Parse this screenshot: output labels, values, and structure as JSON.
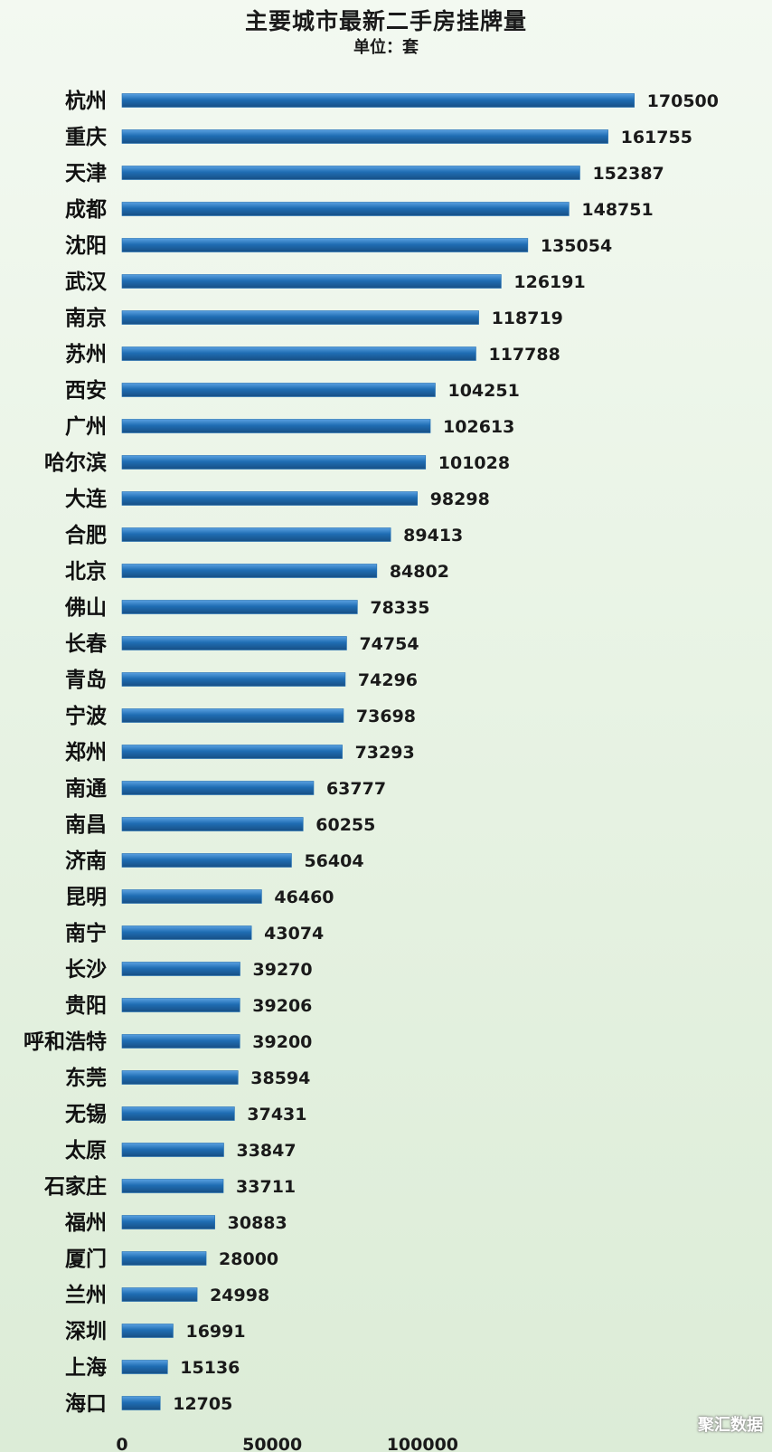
{
  "chart_data": {
    "type": "bar",
    "orientation": "horizontal",
    "title": "主要城市最新二手房挂牌量",
    "subtitle": "单位：套",
    "categories": [
      "杭州",
      "重庆",
      "天津",
      "成都",
      "沈阳",
      "武汉",
      "南京",
      "苏州",
      "西安",
      "广州",
      "哈尔滨",
      "大连",
      "合肥",
      "北京",
      "佛山",
      "长春",
      "青岛",
      "宁波",
      "郑州",
      "南通",
      "南昌",
      "济南",
      "昆明",
      "南宁",
      "长沙",
      "贵阳",
      "呼和浩特",
      "东莞",
      "无锡",
      "太原",
      "石家庄",
      "福州",
      "厦门",
      "兰州",
      "深圳",
      "上海",
      "海口"
    ],
    "values": [
      170500,
      161755,
      152387,
      148751,
      135054,
      126191,
      118719,
      117788,
      104251,
      102613,
      101028,
      98298,
      89413,
      84802,
      78335,
      74754,
      74296,
      73698,
      73293,
      63777,
      60255,
      56404,
      46460,
      43074,
      39270,
      39206,
      39200,
      38594,
      37431,
      33847,
      33711,
      30883,
      28000,
      24998,
      16991,
      15136,
      12705
    ],
    "data_labels": [
      "170500",
      "161755",
      "152387",
      "148751",
      "135054",
      "126191",
      "118719",
      "117788",
      "104251",
      "102613",
      "101028",
      "98298",
      "89413",
      "84802",
      "78335",
      "74754",
      "74296",
      "73698",
      "73293",
      "63777",
      "60255",
      "56404",
      "46460",
      "43074",
      "39270",
      "39206",
      "39200",
      "38594",
      "37431",
      "33847",
      "33711",
      "30883",
      "28000",
      "24998",
      "16991",
      "15136",
      "12705"
    ],
    "x_ticks": [
      0,
      50000,
      100000
    ],
    "x_tick_labels": [
      "0",
      "50000",
      "100000"
    ],
    "xlim": [
      0,
      180000
    ],
    "bar_color": "#1f6db3",
    "grid": false,
    "legend": "none"
  },
  "watermark": "聚汇数据"
}
